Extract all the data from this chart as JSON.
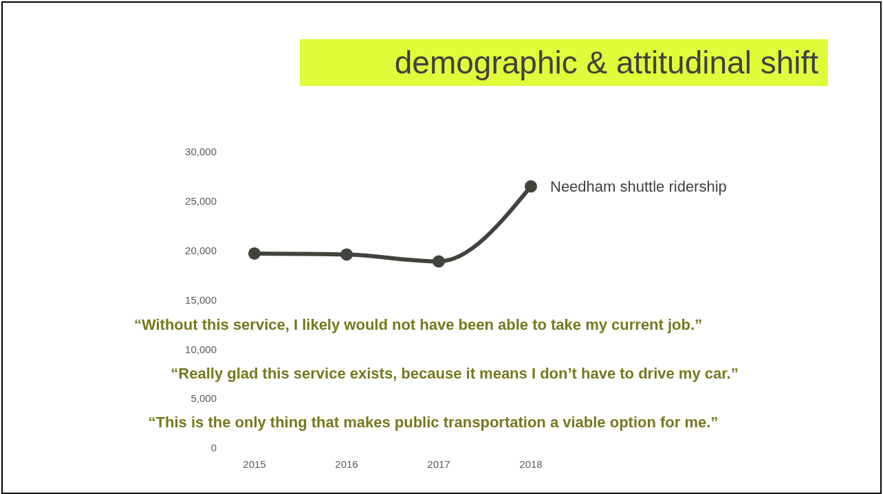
{
  "chart_data": {
    "type": "line",
    "title": "demographic & attitudinal shift",
    "categories": [
      "2015",
      "2016",
      "2017",
      "2018"
    ],
    "series": [
      {
        "name": "Needham shuttle ridership",
        "color": "#3f453d",
        "values": [
          19700,
          19600,
          18900,
          26500
        ]
      }
    ],
    "ylim": [
      0,
      30000
    ],
    "yticks": [
      0,
      {
        "value": 5000,
        "label": "5,000"
      },
      {
        "value": 10000,
        "label": "10,000"
      },
      {
        "value": 15000,
        "label": "15,000"
      },
      {
        "value": 20000,
        "label": "20,000"
      },
      {
        "value": 25000,
        "label": "25,000"
      },
      {
        "value": 30000,
        "label": "30,000"
      }
    ],
    "grid": false,
    "marker": "circle",
    "line_style": "solid",
    "annotations": [
      "“Without this service, I likely would not have been able to take my current job.”",
      "“Really glad this service exists, because it means I don’t have to drive my car.”",
      "“This is the only thing that makes public transportation a viable option for me.”"
    ]
  }
}
